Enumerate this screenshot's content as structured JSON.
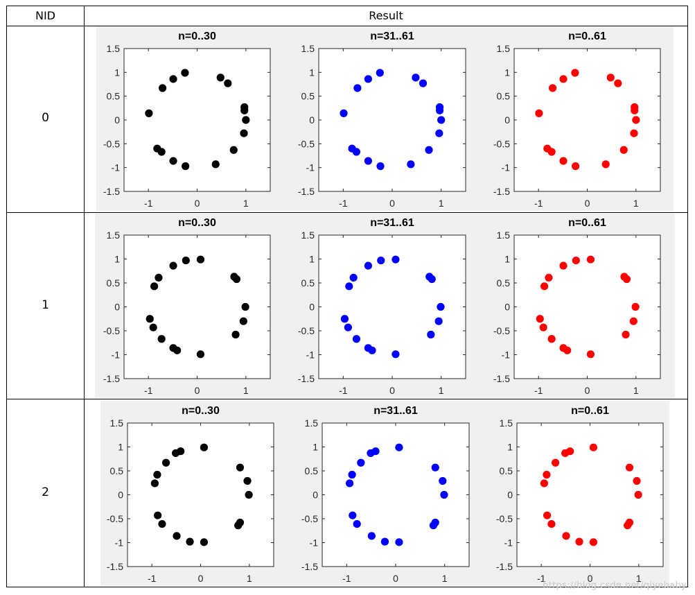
{
  "table": {
    "headers": {
      "nid": "NID",
      "result": "Result"
    },
    "rows": [
      {
        "nid": "0"
      },
      {
        "nid": "1"
      },
      {
        "nid": "2"
      }
    ]
  },
  "watermark": "https://blog.csdn.net/qiyebaby",
  "colors": {
    "black_series": "#000000",
    "blue_series": "#0000ff",
    "red_series": "#ff0000",
    "panel_bg": "#f0f0f0"
  },
  "chart_data": [
    {
      "type": "scatter",
      "row": 0,
      "title": "n=0..30",
      "color": "#000000",
      "xlim": [
        -1.5,
        1.5
      ],
      "ylim": [
        -1.5,
        1.5
      ],
      "xticks": [
        "-1",
        "0",
        "1"
      ],
      "yticks": [
        "1.5",
        "1",
        "0.5",
        "0",
        "-0.5",
        "-1",
        "-1.5"
      ],
      "x": [
        -0.25,
        0.48,
        0.63,
        -0.49,
        -0.71,
        0.97,
        0.97,
        1.0,
        -0.99,
        0.96,
        -0.82,
        -0.73,
        0.75,
        -0.49,
        -0.24,
        0.38
      ],
      "y": [
        0.99,
        0.89,
        0.77,
        0.86,
        0.67,
        0.27,
        0.2,
        0.0,
        0.14,
        -0.28,
        -0.6,
        -0.67,
        -0.63,
        -0.86,
        -0.97,
        -0.93
      ]
    },
    {
      "type": "scatter",
      "row": 0,
      "title": "n=31..61",
      "color": "#0000ff",
      "xlim": [
        -1.5,
        1.5
      ],
      "ylim": [
        -1.5,
        1.5
      ],
      "xticks": [
        "-1",
        "0",
        "1"
      ],
      "yticks": [
        "1.5",
        "1",
        "0.5",
        "0",
        "-0.5",
        "-1",
        "-1.5"
      ],
      "x": [
        -0.25,
        0.48,
        0.63,
        -0.49,
        -0.71,
        0.97,
        0.97,
        1.0,
        -0.99,
        0.96,
        -0.82,
        -0.73,
        0.75,
        -0.49,
        -0.24,
        0.38
      ],
      "y": [
        0.99,
        0.89,
        0.77,
        0.86,
        0.67,
        0.27,
        0.2,
        0.0,
        0.14,
        -0.28,
        -0.6,
        -0.67,
        -0.63,
        -0.86,
        -0.97,
        -0.93
      ]
    },
    {
      "type": "scatter",
      "row": 0,
      "title": "n=0..61",
      "color": "#ff0000",
      "xlim": [
        -1.5,
        1.5
      ],
      "ylim": [
        -1.5,
        1.5
      ],
      "xticks": [
        "-1",
        "0",
        "1"
      ],
      "yticks": [
        "1.5",
        "1",
        "0.5",
        "0",
        "-0.5",
        "-1",
        "-1.5"
      ],
      "x": [
        -0.25,
        0.48,
        0.63,
        -0.49,
        -0.71,
        0.97,
        0.97,
        1.0,
        -0.99,
        0.96,
        -0.82,
        -0.73,
        0.75,
        -0.49,
        -0.24,
        0.38
      ],
      "y": [
        0.99,
        0.89,
        0.77,
        0.86,
        0.67,
        0.27,
        0.2,
        0.0,
        0.14,
        -0.28,
        -0.6,
        -0.67,
        -0.63,
        -0.86,
        -0.97,
        -0.93
      ]
    },
    {
      "type": "scatter",
      "row": 1,
      "title": "n=0..30",
      "color": "#000000",
      "xlim": [
        -1.5,
        1.5
      ],
      "ylim": [
        -1.5,
        1.5
      ],
      "xticks": [
        "-1",
        "0",
        "1"
      ],
      "yticks": [
        "1.5",
        "1",
        "0.5",
        "0",
        "-0.5",
        "-1",
        "-1.5"
      ],
      "x": [
        -0.23,
        0.07,
        -0.49,
        -0.79,
        -0.88,
        0.76,
        0.81,
        0.99,
        -0.97,
        0.95,
        -0.9,
        -0.73,
        0.79,
        -0.49,
        -0.41,
        0.07
      ],
      "y": [
        0.97,
        0.99,
        0.86,
        0.61,
        0.43,
        0.63,
        0.58,
        0.0,
        -0.25,
        -0.3,
        -0.43,
        -0.67,
        -0.58,
        -0.86,
        -0.91,
        -0.99
      ]
    },
    {
      "type": "scatter",
      "row": 1,
      "title": "n=31..61",
      "color": "#0000ff",
      "xlim": [
        -1.5,
        1.5
      ],
      "ylim": [
        -1.5,
        1.5
      ],
      "xticks": [
        "-1",
        "0",
        "1"
      ],
      "yticks": [
        "1.5",
        "1",
        "0.5",
        "0",
        "-0.5",
        "-1",
        "-1.5"
      ],
      "x": [
        -0.23,
        0.07,
        -0.49,
        -0.79,
        -0.88,
        0.76,
        0.81,
        0.99,
        -0.97,
        0.95,
        -0.9,
        -0.73,
        0.79,
        -0.49,
        -0.41,
        0.07
      ],
      "y": [
        0.97,
        0.99,
        0.86,
        0.61,
        0.43,
        0.63,
        0.58,
        0.0,
        -0.25,
        -0.3,
        -0.43,
        -0.67,
        -0.58,
        -0.86,
        -0.91,
        -0.99
      ]
    },
    {
      "type": "scatter",
      "row": 1,
      "title": "n=0..61",
      "color": "#ff0000",
      "xlim": [
        -1.5,
        1.5
      ],
      "ylim": [
        -1.5,
        1.5
      ],
      "xticks": [
        "-1",
        "0",
        "1"
      ],
      "yticks": [
        "1.5",
        "1",
        "0.5",
        "0",
        "-0.5",
        "-1",
        "-1.5"
      ],
      "x": [
        -0.23,
        0.07,
        -0.49,
        -0.79,
        -0.88,
        0.76,
        0.81,
        0.99,
        -0.97,
        0.95,
        -0.9,
        -0.73,
        0.79,
        -0.49,
        -0.41,
        0.07
      ],
      "y": [
        0.97,
        0.99,
        0.86,
        0.61,
        0.43,
        0.63,
        0.58,
        0.0,
        -0.25,
        -0.3,
        -0.43,
        -0.67,
        -0.58,
        -0.86,
        -0.91,
        -0.99
      ]
    },
    {
      "type": "scatter",
      "row": 2,
      "title": "n=0..30",
      "color": "#000000",
      "xlim": [
        -1.5,
        1.5
      ],
      "ylim": [
        -1.5,
        1.5
      ],
      "xticks": [
        "-1",
        "0",
        "1"
      ],
      "yticks": [
        "1.5",
        "1",
        "0.5",
        "0",
        "-0.5",
        "-1",
        "-1.5"
      ],
      "x": [
        0.07,
        -0.41,
        -0.51,
        -0.71,
        -0.89,
        -0.94,
        0.81,
        0.96,
        0.99,
        -0.88,
        -0.79,
        0.81,
        0.77,
        -0.49,
        -0.22,
        0.07
      ],
      "y": [
        0.99,
        0.91,
        0.87,
        0.67,
        0.42,
        0.24,
        0.57,
        0.29,
        0.0,
        -0.43,
        -0.61,
        -0.58,
        -0.64,
        -0.86,
        -0.98,
        -0.99
      ]
    },
    {
      "type": "scatter",
      "row": 2,
      "title": "n=31..61",
      "color": "#0000ff",
      "xlim": [
        -1.5,
        1.5
      ],
      "ylim": [
        -1.5,
        1.5
      ],
      "xticks": [
        "-1",
        "0",
        "1"
      ],
      "yticks": [
        "1.5",
        "1",
        "0.5",
        "0",
        "-0.5",
        "-1",
        "-1.5"
      ],
      "x": [
        0.07,
        -0.41,
        -0.51,
        -0.71,
        -0.89,
        -0.94,
        0.81,
        0.96,
        0.99,
        -0.88,
        -0.79,
        0.81,
        0.77,
        -0.49,
        -0.22,
        0.07
      ],
      "y": [
        0.99,
        0.91,
        0.87,
        0.67,
        0.42,
        0.24,
        0.57,
        0.29,
        0.0,
        -0.43,
        -0.61,
        -0.58,
        -0.64,
        -0.86,
        -0.98,
        -0.99
      ]
    },
    {
      "type": "scatter",
      "row": 2,
      "title": "n=0..61",
      "color": "#ff0000",
      "xlim": [
        -1.5,
        1.5
      ],
      "ylim": [
        -1.5,
        1.5
      ],
      "xticks": [
        "-1",
        "0",
        "1"
      ],
      "yticks": [
        "1.5",
        "1",
        "0.5",
        "0",
        "-0.5",
        "-1",
        "-1.5"
      ],
      "x": [
        0.07,
        -0.41,
        -0.51,
        -0.71,
        -0.89,
        -0.94,
        0.81,
        0.96,
        0.99,
        -0.88,
        -0.79,
        0.81,
        0.77,
        -0.49,
        -0.22,
        0.07
      ],
      "y": [
        0.99,
        0.91,
        0.87,
        0.67,
        0.42,
        0.24,
        0.57,
        0.29,
        0.0,
        -0.43,
        -0.61,
        -0.58,
        -0.64,
        -0.86,
        -0.98,
        -0.99
      ]
    }
  ]
}
